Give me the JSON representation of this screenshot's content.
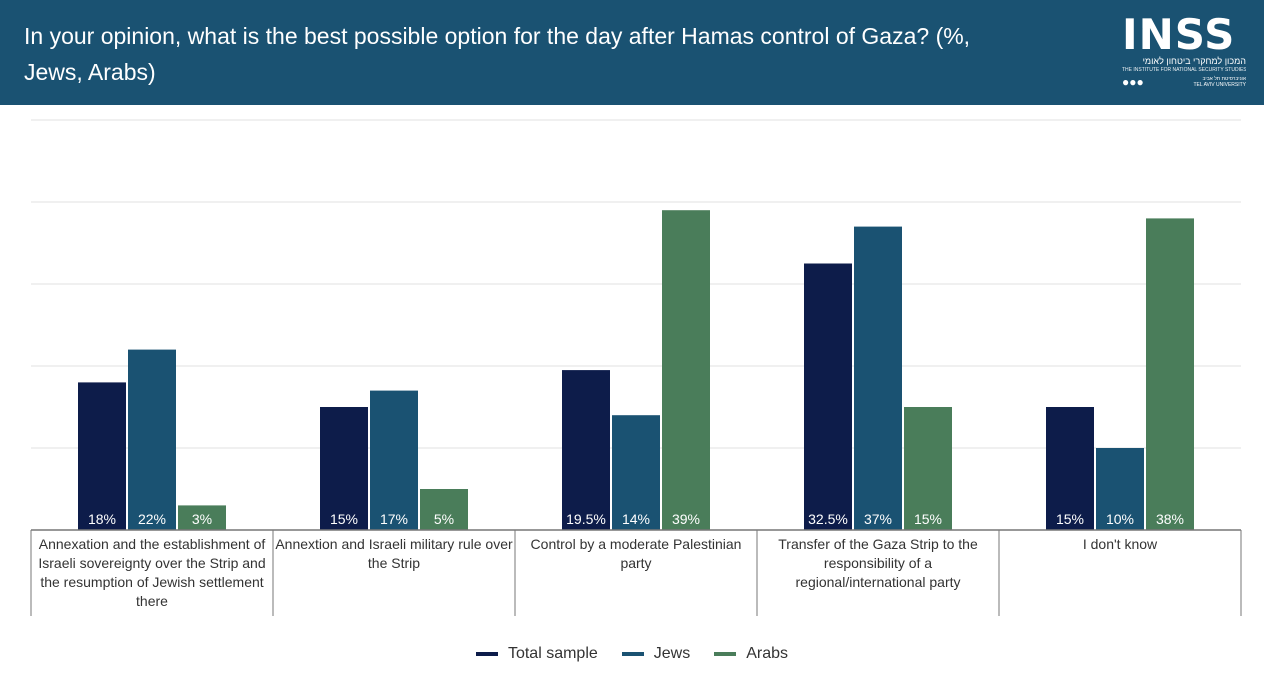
{
  "header": {
    "title": "In your opinion, what is the best possible option for the day after Hamas control of Gaza? (%, Jews, Arabs)",
    "logo_text": "INSS",
    "logo_hebrew": "המכון למחקרי ביטחון לאומי",
    "logo_english": "THE INSTITUTE FOR NATIONAL SECURITY STUDIES",
    "logo_university": "אוניברסיטת תל אביב",
    "logo_university_en": "TEL AVIV UNIVERSITY"
  },
  "colors": {
    "header_bg": "#1a5272",
    "total": "#0d1c4a",
    "jews": "#1a5272",
    "arabs": "#4a7d5a"
  },
  "chart_data": {
    "type": "bar",
    "categories": [
      "Annexation and the establishment of Israeli sovereignty over the Strip and the resumption of Jewish settlement there",
      "Annextion and Israeli military rule over the Strip",
      "Control by a moderate Palestinian party",
      "Transfer of the Gaza Strip to the responsibility of a regional/international party",
      "I don't know"
    ],
    "series": [
      {
        "name": "Total sample",
        "color": "#0d1c4a",
        "values": [
          18,
          15,
          19.5,
          32.5,
          15
        ],
        "labels": [
          "18%",
          "15%",
          "19.5%",
          "32.5%",
          "15%"
        ]
      },
      {
        "name": "Jews",
        "color": "#1a5272",
        "values": [
          22,
          17,
          14,
          37,
          10
        ],
        "labels": [
          "22%",
          "17%",
          "14%",
          "37%",
          "10%"
        ]
      },
      {
        "name": "Arabs",
        "color": "#4a7d5a",
        "values": [
          3,
          5,
          39,
          15,
          38
        ],
        "labels": [
          "3%",
          "5%",
          "39%",
          "15%",
          "38%"
        ]
      }
    ],
    "ylim": [
      0,
      50
    ],
    "grid": true,
    "legend_position": "bottom"
  }
}
